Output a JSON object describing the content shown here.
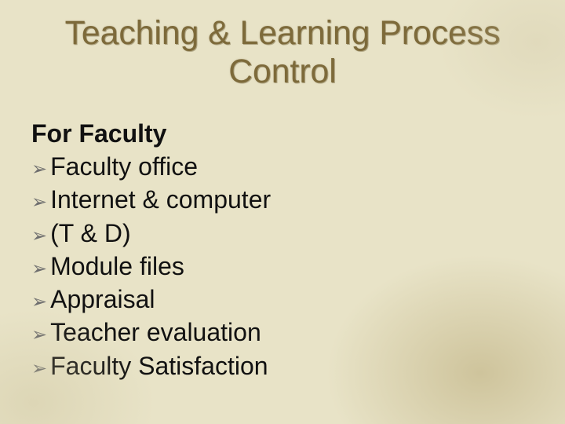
{
  "slide": {
    "background_color": "#e8e3c7",
    "title": {
      "line1": "Teaching & Learning Process",
      "line2": "Control",
      "color": "#7d6a3a",
      "font_size_pt": 32,
      "font_weight": 400
    },
    "subhead": {
      "text": "For Faculty",
      "color": "#111111",
      "font_size_pt": 24,
      "font_weight": 700
    },
    "bullets": {
      "marker_glyph": "➢",
      "marker_color": "#6e6e6e",
      "text_color": "#111111",
      "font_size_pt": 24,
      "items": [
        "Faculty office",
        "Internet & computer",
        "(T & D)",
        "Module files",
        "Appraisal",
        "Teacher evaluation",
        "Faculty Satisfaction"
      ]
    }
  }
}
